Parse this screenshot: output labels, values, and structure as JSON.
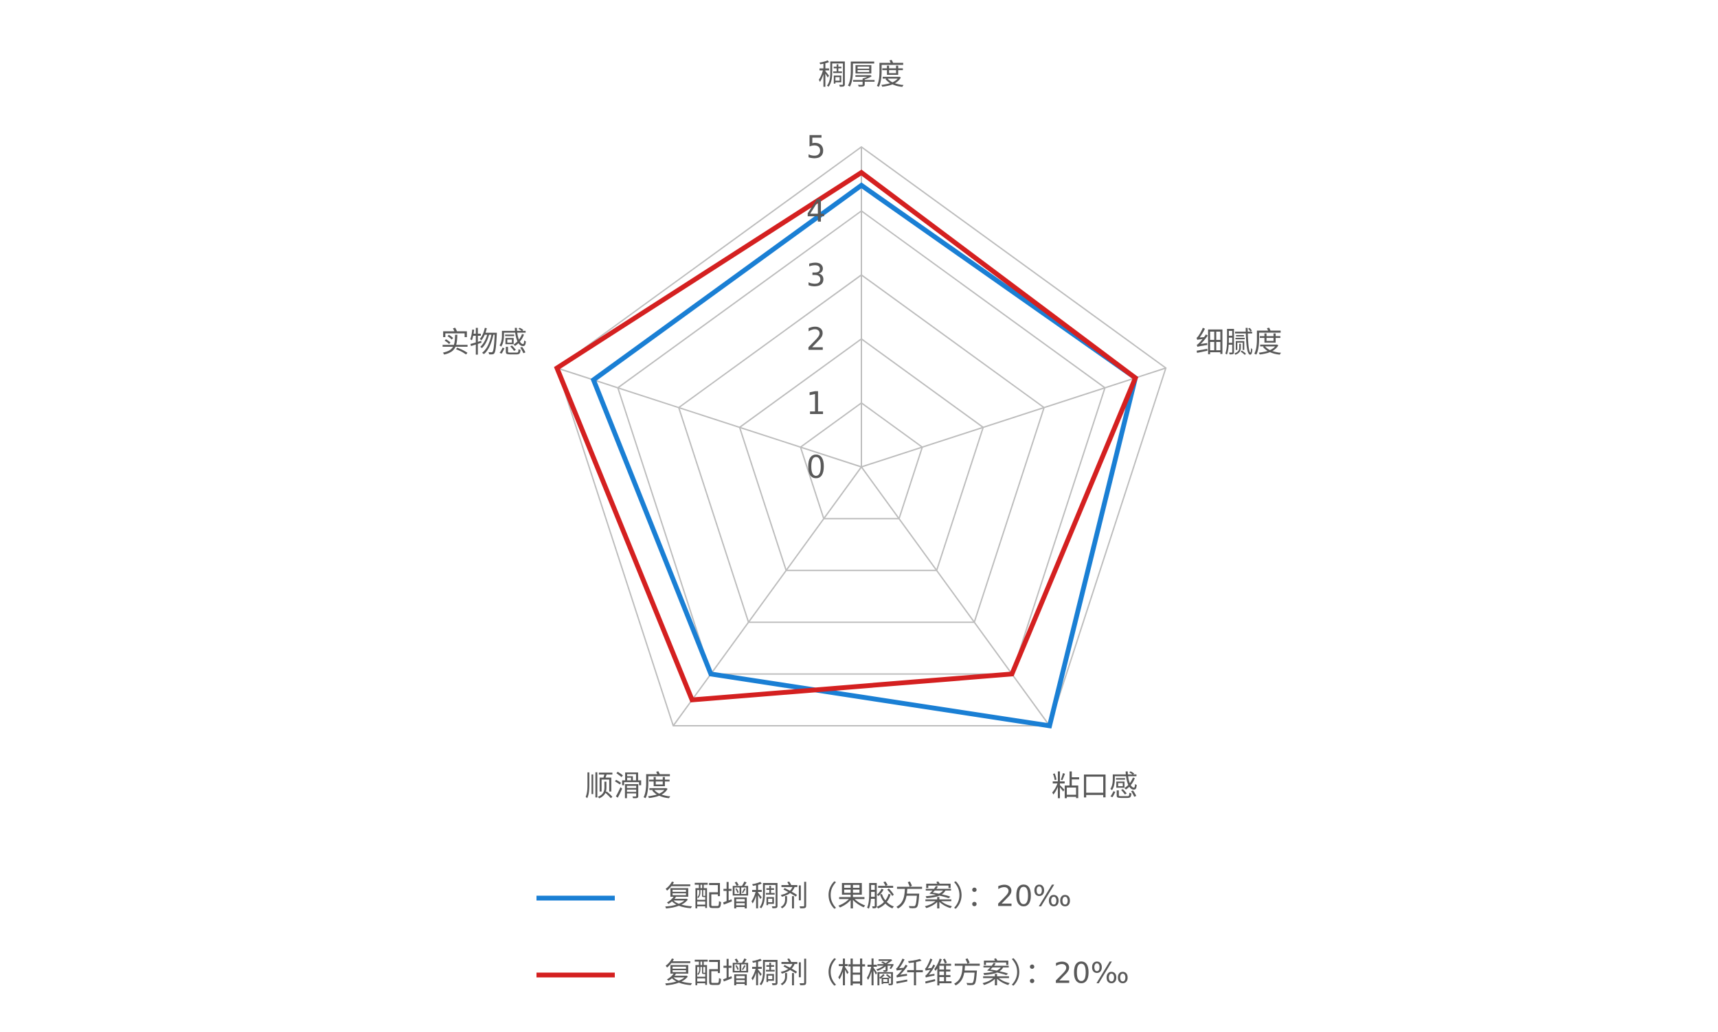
{
  "chart_data": {
    "type": "radar",
    "categories": [
      "稠厚度",
      "细腻度",
      "粘口感",
      "顺滑度",
      "实物感"
    ],
    "series": [
      {
        "name": "复配增稠剂（果胶方案）：20‰",
        "color": "#1a7fd4",
        "values": [
          4.4,
          4.5,
          5.0,
          4.0,
          4.4
        ]
      },
      {
        "name": "复配增稠剂（柑橘纤维方案）：20‰",
        "color": "#d42020",
        "values": [
          4.6,
          4.5,
          4.0,
          4.5,
          5.0
        ]
      }
    ],
    "ylim": [
      0,
      5
    ],
    "yticks": [
      0,
      1,
      2,
      3,
      4,
      5
    ],
    "grid": true,
    "legend": "bottom"
  }
}
